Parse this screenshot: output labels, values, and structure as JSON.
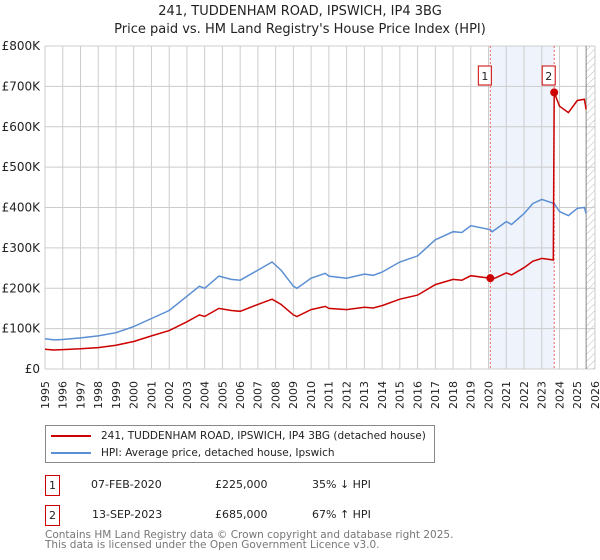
{
  "title": "241, TUDDENHAM ROAD, IPSWICH, IP4 3BG",
  "subtitle": "Price paid vs. HM Land Registry's House Price Index (HPI)",
  "chart_data": {
    "type": "line",
    "xlim": [
      1995,
      2026
    ],
    "ylim": [
      0,
      800000
    ],
    "yticks": [
      0,
      100000,
      200000,
      300000,
      400000,
      500000,
      600000,
      700000,
      800000
    ],
    "ytick_labels": [
      "£0",
      "£100K",
      "£200K",
      "£300K",
      "£400K",
      "£500K",
      "£600K",
      "£700K",
      "£800K"
    ],
    "xticks": [
      "1995",
      "1996",
      "1997",
      "1998",
      "1999",
      "2000",
      "2001",
      "2002",
      "2003",
      "2004",
      "2005",
      "2006",
      "2007",
      "2008",
      "2009",
      "2010",
      "2011",
      "2012",
      "2013",
      "2014",
      "2015",
      "2016",
      "2017",
      "2018",
      "2019",
      "2020",
      "2021",
      "2022",
      "2023",
      "2024",
      "2025",
      "2026"
    ],
    "grid": true,
    "shaded_range": [
      2020.1,
      2023.7
    ],
    "hatched_from": 2025.5,
    "series": [
      {
        "name": "241, TUDDENHAM ROAD, IPSWICH, IP4 3BG (detached house)",
        "color": "#cc0000",
        "x": [
          1995,
          1995.5,
          1996,
          1997,
          1998,
          1999,
          2000,
          2001,
          2002,
          2003,
          2003.7,
          2004,
          2004.8,
          2005.5,
          2006,
          2007,
          2007.8,
          2008.3,
          2009,
          2009.2,
          2010,
          2010.8,
          2011,
          2012,
          2013,
          2013.5,
          2014,
          2015,
          2016,
          2017,
          2018,
          2018.5,
          2019,
          2020.1,
          2020.2,
          2021,
          2021.3,
          2022,
          2022.5,
          2023,
          2023.65,
          2023.7,
          2024,
          2024.5,
          2025,
          2025.4,
          2025.5
        ],
        "y": [
          49000,
          47000,
          48000,
          50000,
          53000,
          59000,
          68000,
          82000,
          95000,
          117000,
          134000,
          130000,
          150000,
          145000,
          143000,
          160000,
          173000,
          160000,
          134000,
          130000,
          147000,
          155000,
          150000,
          147000,
          153000,
          151000,
          157000,
          173000,
          183000,
          209000,
          222000,
          220000,
          231000,
          225000,
          222000,
          238000,
          233000,
          251000,
          267000,
          274000,
          270000,
          685000,
          651000,
          635000,
          665000,
          668000,
          643000
        ]
      },
      {
        "name": "HPI: Average price, detached house, Ipswich",
        "color": "#5b8fd4",
        "x": [
          1995,
          1995.5,
          1996,
          1997,
          1998,
          1999,
          2000,
          2001,
          2002,
          2003,
          2003.7,
          2004,
          2004.8,
          2005.5,
          2006,
          2007,
          2007.8,
          2008.3,
          2009,
          2009.2,
          2010,
          2010.8,
          2011,
          2012,
          2013,
          2013.5,
          2014,
          2015,
          2016,
          2017,
          2018,
          2018.5,
          2019,
          2020.1,
          2020.2,
          2021,
          2021.3,
          2022,
          2022.5,
          2023,
          2023.7,
          2024,
          2024.5,
          2025,
          2025.4,
          2025.5
        ],
        "y": [
          75000,
          72000,
          73000,
          77000,
          82000,
          90000,
          105000,
          125000,
          145000,
          180000,
          205000,
          200000,
          230000,
          222000,
          220000,
          245000,
          265000,
          245000,
          205000,
          200000,
          225000,
          237000,
          230000,
          225000,
          235000,
          232000,
          240000,
          265000,
          280000,
          320000,
          340000,
          338000,
          355000,
          345000,
          340000,
          365000,
          358000,
          385000,
          410000,
          420000,
          410000,
          390000,
          380000,
          398000,
          400000,
          385000
        ]
      }
    ],
    "sales": [
      {
        "label": "1",
        "x": 2020.1,
        "y": 225000
      },
      {
        "label": "2",
        "x": 2023.7,
        "y": 685000
      }
    ]
  },
  "legend": {
    "red": "241, TUDDENHAM ROAD, IPSWICH, IP4 3BG (detached house)",
    "blue": "HPI: Average price, detached house, Ipswich"
  },
  "transactions": [
    {
      "num": "1",
      "date": "07-FEB-2020",
      "price": "£225,000",
      "hpi": "35% ↓ HPI"
    },
    {
      "num": "2",
      "date": "13-SEP-2023",
      "price": "£685,000",
      "hpi": "67% ↑ HPI"
    }
  ],
  "footer": [
    "Contains HM Land Registry data © Crown copyright and database right 2025.",
    "This data is licensed under the Open Government Licence v3.0."
  ]
}
